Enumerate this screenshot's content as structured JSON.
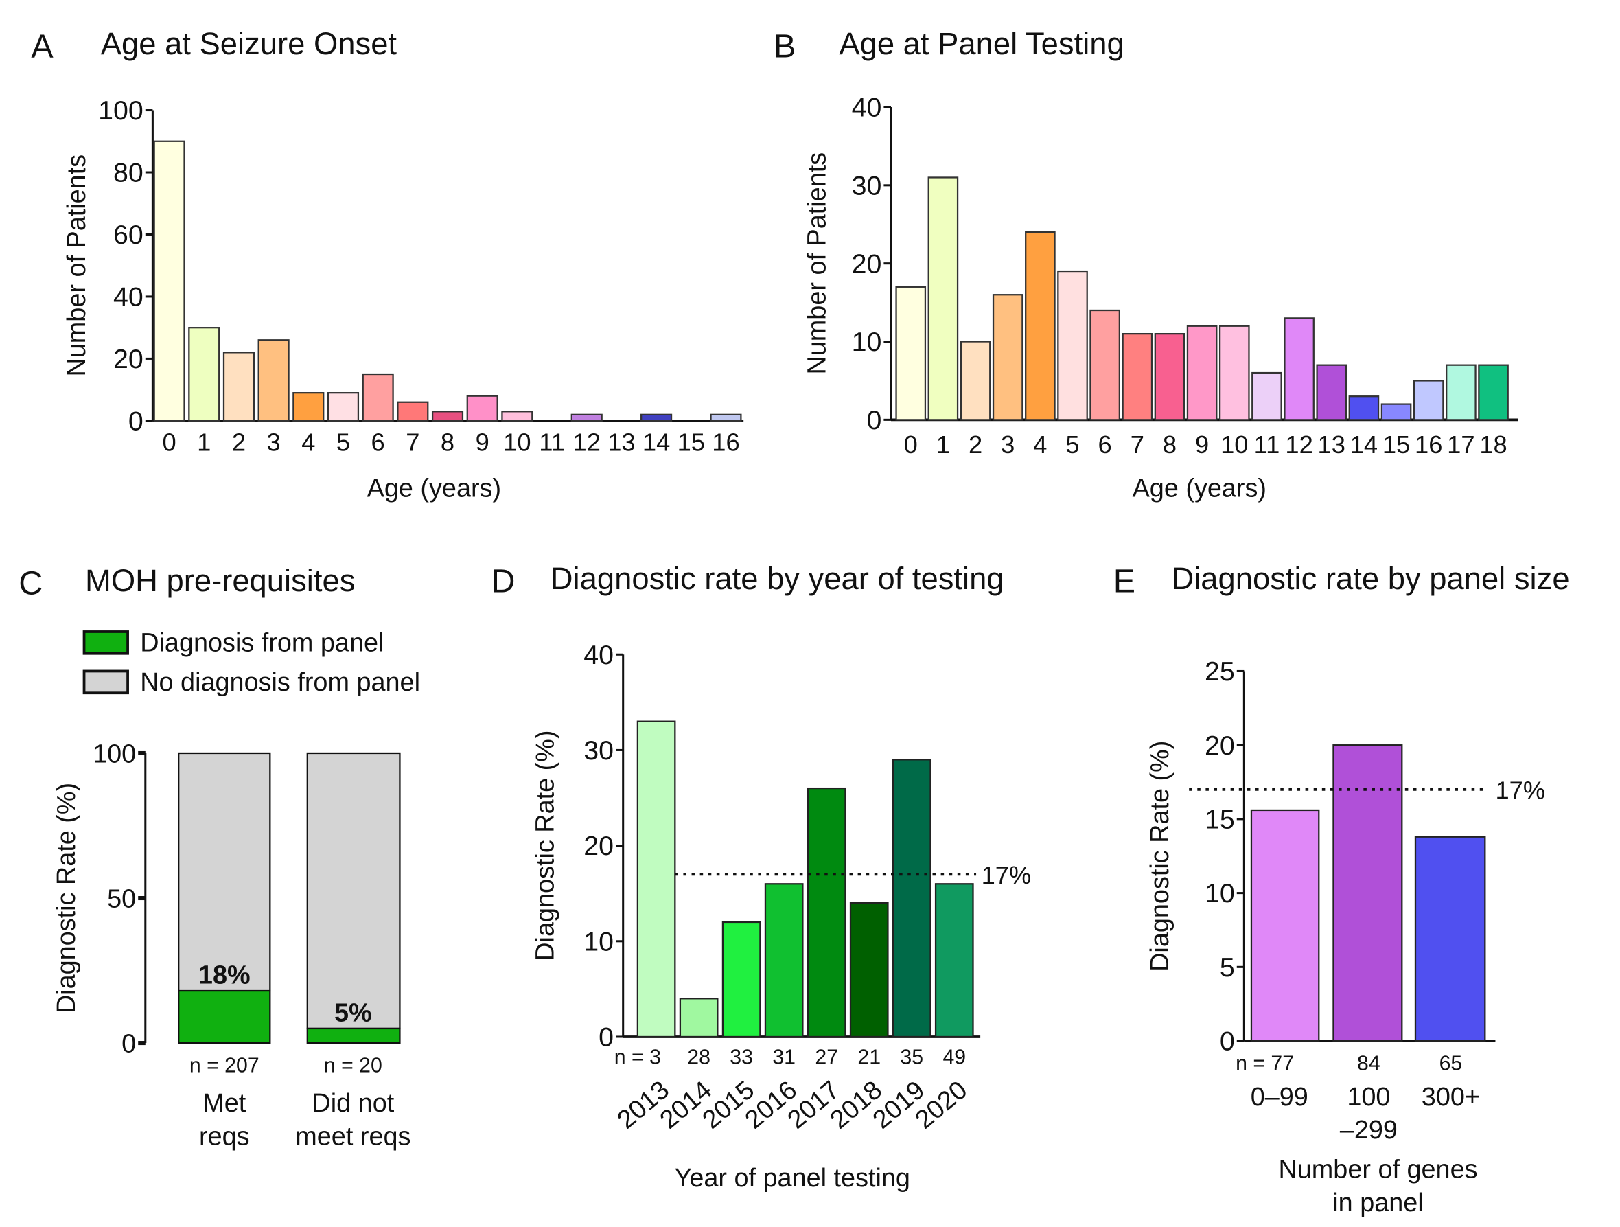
{
  "chart_data": [
    {
      "panel": "A",
      "type": "bar",
      "title": "Age at Seizure Onset",
      "xlabel": "Age (years)",
      "ylabel": "Number of Patients",
      "ylim": [
        0,
        100
      ],
      "yticks": [
        0,
        20,
        40,
        60,
        80,
        100
      ],
      "categories": [
        "0",
        "1",
        "2",
        "3",
        "4",
        "5",
        "6",
        "7",
        "8",
        "9",
        "10",
        "11",
        "12",
        "13",
        "14",
        "15",
        "16"
      ],
      "values": [
        90,
        30,
        22,
        26,
        9,
        9,
        15,
        6,
        3,
        8,
        3,
        0,
        2,
        0,
        2,
        0,
        2
      ],
      "colors": [
        "#ffffe0",
        "#eeffc0",
        "#ffe0c0",
        "#ffc080",
        "#ffa040",
        "#ffe0e4",
        "#ffa0a0",
        "#ff7878",
        "#e85080",
        "#ff90c8",
        "#ffc0dc",
        "#ffffff",
        "#c080e0",
        "#ffffff",
        "#4040c0",
        "#ffffff",
        "#c0c8f0"
      ]
    },
    {
      "panel": "B",
      "type": "bar",
      "title": "Age at Panel Testing",
      "xlabel": "Age (years)",
      "ylabel": "Number of Patients",
      "ylim": [
        0,
        40
      ],
      "yticks": [
        0,
        10,
        20,
        30,
        40
      ],
      "categories": [
        "0",
        "1",
        "2",
        "3",
        "4",
        "5",
        "6",
        "7",
        "8",
        "9",
        "10",
        "11",
        "12",
        "13",
        "14",
        "15",
        "16",
        "17",
        "18"
      ],
      "values": [
        17,
        31,
        10,
        16,
        24,
        19,
        14,
        11,
        11,
        12,
        12,
        6,
        13,
        7,
        3,
        2,
        5,
        7,
        7
      ],
      "colors": [
        "#ffffe0",
        "#f0ffc0",
        "#ffe0c0",
        "#ffc080",
        "#ffa040",
        "#ffe0e0",
        "#ffa0a0",
        "#ff8080",
        "#f86090",
        "#ff98c8",
        "#ffc0e0",
        "#ecd0f8",
        "#e088f8",
        "#b050d8",
        "#5050f0",
        "#8888ff",
        "#c0c8ff",
        "#b0f8e0",
        "#10c080"
      ]
    },
    {
      "panel": "C",
      "type": "stacked-bar",
      "title": "MOH pre-requisites",
      "ylabel": "Diagnostic Rate (%)",
      "ylim": [
        0,
        100
      ],
      "yticks": [
        0,
        50,
        100
      ],
      "legend": [
        {
          "name": "Diagnosis from panel",
          "color": "#10b010"
        },
        {
          "name": "No diagnosis from panel",
          "color": "#d4d4d4"
        }
      ],
      "categories": [
        [
          "Met",
          "reqs"
        ],
        [
          "Did not",
          "meet reqs"
        ]
      ],
      "n_labels": [
        "n = 207",
        "n = 20"
      ],
      "series": [
        {
          "name": "Diagnosis from panel",
          "values": [
            18,
            5
          ]
        },
        {
          "name": "No diagnosis from panel",
          "values": [
            82,
            95
          ]
        }
      ],
      "data_labels": [
        "18%",
        "5%"
      ]
    },
    {
      "panel": "D",
      "type": "bar",
      "title": "Diagnostic rate by year of testing",
      "xlabel": "Year of panel testing",
      "ylabel": "Diagnostic Rate (%)",
      "ylim": [
        0,
        40
      ],
      "yticks": [
        0,
        10,
        20,
        30,
        40
      ],
      "categories": [
        "2013",
        "2014",
        "2015",
        "2016",
        "2017",
        "2018",
        "2019",
        "2020"
      ],
      "values": [
        33,
        4,
        12,
        16,
        26,
        14,
        29,
        16
      ],
      "n_labels": [
        "n = 3",
        "28",
        "33",
        "31",
        "27",
        "21",
        "35",
        "49"
      ],
      "reference_line": {
        "value": 17,
        "label": "17%"
      },
      "colors": [
        "#c0fcc0",
        "#a0f8a0",
        "#20f040",
        "#10c030",
        "#008a10",
        "#006000",
        "#006a48",
        "#109a60"
      ]
    },
    {
      "panel": "E",
      "type": "bar",
      "title": "Diagnostic rate by panel size",
      "xlabel": [
        "Number of genes",
        "in panel"
      ],
      "ylabel": "Diagnostic Rate (%)",
      "ylim": [
        0,
        25
      ],
      "yticks": [
        0,
        5,
        10,
        15,
        20,
        25
      ],
      "categories": [
        [
          "0–99"
        ],
        [
          "100",
          "–299"
        ],
        [
          "300+"
        ]
      ],
      "values": [
        15.6,
        20,
        13.8
      ],
      "n_labels": [
        "n = 77",
        "84",
        "65"
      ],
      "reference_line": {
        "value": 17,
        "label": "17%"
      },
      "colors": [
        "#e088f8",
        "#b050d8",
        "#5050f0"
      ]
    }
  ]
}
